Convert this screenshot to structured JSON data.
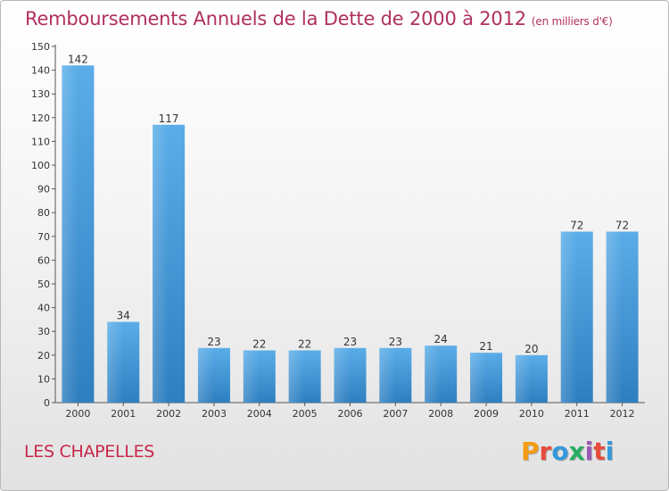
{
  "header": {
    "title": "Remboursements Annuels de la Dette de 2000 à 2012",
    "unit": "(en milliers d'€)"
  },
  "footer": {
    "commune": "LES CHAPELLES",
    "logo_text": "Proxiti",
    "logo_colors": [
      "#f39c12",
      "#e74c3c",
      "#3498db",
      "#27ae60",
      "#9b59b6",
      "#e74c3c",
      "#3498db"
    ]
  },
  "colors": {
    "bar_top": "#5aade8",
    "bar_bottom": "#2e7fc0",
    "title": "#b03060",
    "commune": "#c8284a"
  },
  "chart_data": {
    "type": "bar",
    "categories": [
      "2000",
      "2001",
      "2002",
      "2003",
      "2004",
      "2005",
      "2006",
      "2007",
      "2008",
      "2009",
      "2010",
      "2011",
      "2012"
    ],
    "values": [
      142,
      34,
      117,
      23,
      22,
      22,
      23,
      23,
      24,
      21,
      20,
      72,
      72
    ],
    "ylim": [
      0,
      150
    ],
    "yticks": [
      0,
      10,
      20,
      30,
      40,
      50,
      60,
      70,
      80,
      90,
      100,
      110,
      120,
      130,
      140,
      150
    ],
    "grid": false,
    "data_labels": true
  }
}
